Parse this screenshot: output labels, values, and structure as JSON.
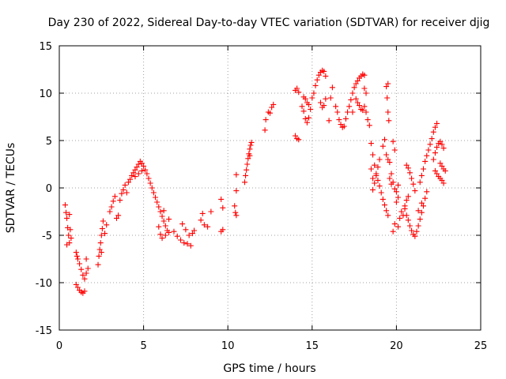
{
  "chart_data": {
    "type": "scatter",
    "title": "Day 230 of 2022, Sidereal Day-to-day VTEC variation (SDTVAR) for receiver djig",
    "xlabel": "GPS time / hours",
    "ylabel": "SDTVAR / TECUs",
    "xlim": [
      0,
      25
    ],
    "ylim": [
      -15,
      15
    ],
    "xticks": [
      0,
      5,
      10,
      15,
      20,
      25
    ],
    "yticks": [
      -15,
      -10,
      -5,
      0,
      5,
      10,
      15
    ],
    "xtick_labels": [
      "0",
      "5",
      "10",
      "15",
      "20",
      "25"
    ],
    "ytick_labels": [
      "-15",
      "-10",
      "-5",
      "0",
      "5",
      "10",
      "15"
    ],
    "grid": true,
    "marker": "+",
    "color": "#ff0000",
    "series": [
      {
        "name": "SDTVAR",
        "points": [
          [
            0.35,
            -1.8
          ],
          [
            0.4,
            -2.6
          ],
          [
            0.45,
            -3.2
          ],
          [
            0.5,
            -4.2
          ],
          [
            0.55,
            -5.0
          ],
          [
            0.6,
            -5.8
          ],
          [
            0.45,
            -6.0
          ],
          [
            0.6,
            -2.8
          ],
          [
            0.65,
            -4.4
          ],
          [
            0.7,
            -5.3
          ],
          [
            1.0,
            -10.2
          ],
          [
            1.1,
            -10.5
          ],
          [
            1.2,
            -10.8
          ],
          [
            1.3,
            -11.0
          ],
          [
            1.4,
            -11.1
          ],
          [
            1.5,
            -10.9
          ],
          [
            1.1,
            -7.5
          ],
          [
            1.2,
            -8.0
          ],
          [
            1.3,
            -8.6
          ],
          [
            1.4,
            -9.2
          ],
          [
            1.5,
            -9.6
          ],
          [
            1.6,
            -9.0
          ],
          [
            1.0,
            -6.8
          ],
          [
            1.05,
            -7.2
          ],
          [
            1.6,
            -7.5
          ],
          [
            1.7,
            -8.5
          ],
          [
            2.3,
            -8.1
          ],
          [
            2.35,
            -7.2
          ],
          [
            2.4,
            -6.5
          ],
          [
            2.45,
            -5.8
          ],
          [
            2.5,
            -5.0
          ],
          [
            2.55,
            -4.3
          ],
          [
            2.6,
            -3.5
          ],
          [
            2.7,
            -4.8
          ],
          [
            2.8,
            -3.9
          ],
          [
            2.5,
            -6.8
          ],
          [
            3.0,
            -2.5
          ],
          [
            3.1,
            -2.0
          ],
          [
            3.2,
            -1.4
          ],
          [
            3.3,
            -0.9
          ],
          [
            3.4,
            -3.2
          ],
          [
            3.5,
            -2.9
          ],
          [
            3.6,
            -1.3
          ],
          [
            3.7,
            -0.6
          ],
          [
            3.8,
            -0.2
          ],
          [
            3.9,
            0.3
          ],
          [
            4.0,
            -0.5
          ],
          [
            4.1,
            0.6
          ],
          [
            4.2,
            0.9
          ],
          [
            4.3,
            1.3
          ],
          [
            4.4,
            1.6
          ],
          [
            4.5,
            1.9
          ],
          [
            4.6,
            2.2
          ],
          [
            4.7,
            2.5
          ],
          [
            4.8,
            2.8
          ],
          [
            4.9,
            2.6
          ],
          [
            5.0,
            2.3
          ],
          [
            4.5,
            1.2
          ],
          [
            4.7,
            1.5
          ],
          [
            4.9,
            1.8
          ],
          [
            5.1,
            1.9
          ],
          [
            5.2,
            1.5
          ],
          [
            5.3,
            1.0
          ],
          [
            5.4,
            0.5
          ],
          [
            5.5,
            0.0
          ],
          [
            5.6,
            -0.5
          ],
          [
            5.7,
            -1.0
          ],
          [
            5.8,
            -1.5
          ],
          [
            5.9,
            -2.0
          ],
          [
            6.0,
            -2.5
          ],
          [
            6.1,
            -3.0
          ],
          [
            6.2,
            -3.5
          ],
          [
            6.3,
            -4.0
          ],
          [
            6.4,
            -4.5
          ],
          [
            6.2,
            -2.4
          ],
          [
            6.5,
            -3.3
          ],
          [
            5.9,
            -4.1
          ],
          [
            6.0,
            -4.9
          ],
          [
            6.1,
            -5.3
          ],
          [
            6.3,
            -5.0
          ],
          [
            6.5,
            -4.7
          ],
          [
            6.8,
            -4.6
          ],
          [
            7.0,
            -5.1
          ],
          [
            7.2,
            -5.5
          ],
          [
            7.4,
            -5.8
          ],
          [
            7.6,
            -5.9
          ],
          [
            7.8,
            -6.1
          ],
          [
            7.3,
            -3.8
          ],
          [
            7.5,
            -4.4
          ],
          [
            7.7,
            -5.0
          ],
          [
            7.9,
            -4.8
          ],
          [
            8.0,
            -4.5
          ],
          [
            8.4,
            -3.4
          ],
          [
            8.5,
            -2.7
          ],
          [
            8.6,
            -3.9
          ],
          [
            8.8,
            -4.1
          ],
          [
            9.0,
            -2.5
          ],
          [
            9.6,
            -4.6
          ],
          [
            9.7,
            -4.4
          ],
          [
            9.6,
            -1.2
          ],
          [
            9.7,
            -2.1
          ],
          [
            10.4,
            -1.9
          ],
          [
            10.45,
            -2.6
          ],
          [
            10.5,
            -2.9
          ],
          [
            10.5,
            -0.3
          ],
          [
            10.5,
            1.4
          ],
          [
            11.0,
            0.6
          ],
          [
            11.05,
            1.3
          ],
          [
            11.1,
            1.9
          ],
          [
            11.15,
            2.5
          ],
          [
            11.2,
            3.1
          ],
          [
            11.25,
            3.6
          ],
          [
            11.3,
            4.1
          ],
          [
            11.35,
            4.5
          ],
          [
            11.4,
            4.8
          ],
          [
            11.3,
            3.4
          ],
          [
            12.2,
            6.1
          ],
          [
            12.25,
            7.2
          ],
          [
            12.5,
            7.9
          ],
          [
            12.6,
            8.5
          ],
          [
            12.7,
            8.8
          ],
          [
            12.4,
            8.0
          ],
          [
            14.0,
            5.5
          ],
          [
            14.1,
            5.2
          ],
          [
            14.2,
            5.1
          ],
          [
            14.0,
            10.3
          ],
          [
            14.1,
            10.5
          ],
          [
            14.2,
            10.1
          ],
          [
            14.4,
            8.6
          ],
          [
            14.5,
            8.1
          ],
          [
            14.6,
            7.3
          ],
          [
            14.7,
            6.9
          ],
          [
            14.8,
            7.4
          ],
          [
            14.9,
            8.3
          ],
          [
            14.5,
            9.6
          ],
          [
            14.6,
            9.4
          ],
          [
            14.7,
            9.0
          ],
          [
            14.8,
            8.8
          ],
          [
            15.0,
            9.5
          ],
          [
            15.1,
            10.0
          ],
          [
            15.2,
            10.8
          ],
          [
            15.3,
            11.4
          ],
          [
            15.4,
            11.9
          ],
          [
            15.5,
            12.2
          ],
          [
            15.6,
            12.4
          ],
          [
            15.7,
            12.3
          ],
          [
            15.8,
            11.8
          ],
          [
            15.5,
            9.0
          ],
          [
            15.6,
            8.5
          ],
          [
            15.7,
            8.7
          ],
          [
            15.8,
            9.4
          ],
          [
            16.0,
            7.1
          ],
          [
            16.2,
            10.6
          ],
          [
            16.1,
            9.5
          ],
          [
            16.4,
            8.6
          ],
          [
            16.5,
            8.0
          ],
          [
            16.6,
            7.2
          ],
          [
            16.7,
            6.7
          ],
          [
            16.8,
            6.4
          ],
          [
            16.9,
            6.5
          ],
          [
            17.0,
            7.3
          ],
          [
            17.1,
            8.0
          ],
          [
            17.2,
            8.6
          ],
          [
            17.3,
            9.3
          ],
          [
            17.4,
            10.0
          ],
          [
            17.5,
            10.6
          ],
          [
            17.6,
            11.0
          ],
          [
            17.7,
            11.3
          ],
          [
            17.8,
            11.6
          ],
          [
            17.9,
            11.8
          ],
          [
            18.0,
            12.0
          ],
          [
            18.1,
            11.9
          ],
          [
            17.6,
            9.4
          ],
          [
            17.7,
            9.0
          ],
          [
            17.8,
            8.7
          ],
          [
            17.9,
            8.3
          ],
          [
            18.0,
            8.2
          ],
          [
            18.1,
            8.6
          ],
          [
            18.2,
            8.0
          ],
          [
            18.3,
            7.2
          ],
          [
            18.4,
            6.6
          ],
          [
            17.4,
            8.0
          ],
          [
            18.1,
            10.5
          ],
          [
            18.2,
            10.0
          ],
          [
            18.5,
            4.7
          ],
          [
            18.6,
            3.5
          ],
          [
            18.7,
            2.4
          ],
          [
            18.8,
            1.5
          ],
          [
            18.9,
            0.8
          ],
          [
            19.0,
            0.2
          ],
          [
            19.1,
            -0.5
          ],
          [
            19.2,
            -1.2
          ],
          [
            18.6,
            -0.2
          ],
          [
            18.7,
            0.5
          ],
          [
            18.8,
            1.3
          ],
          [
            18.9,
            2.2
          ],
          [
            19.0,
            3.0
          ],
          [
            18.5,
            2.0
          ],
          [
            18.6,
            1.0
          ],
          [
            19.3,
            -1.8
          ],
          [
            19.4,
            -2.4
          ],
          [
            19.5,
            -2.9
          ],
          [
            19.3,
            5.1
          ],
          [
            19.4,
            3.5
          ],
          [
            19.5,
            3.0
          ],
          [
            19.2,
            4.4
          ],
          [
            19.6,
            2.7
          ],
          [
            19.7,
            1.5
          ],
          [
            19.8,
            0.6
          ],
          [
            19.9,
            -0.1
          ],
          [
            20.0,
            -0.4
          ],
          [
            20.1,
            0.3
          ],
          [
            19.4,
            10.7
          ],
          [
            19.45,
            9.5
          ],
          [
            19.5,
            8.0
          ],
          [
            19.55,
            7.1
          ],
          [
            19.5,
            11.0
          ],
          [
            19.6,
            1.0
          ],
          [
            19.7,
            0.4
          ],
          [
            19.8,
            4.9
          ],
          [
            19.9,
            4.0
          ],
          [
            19.8,
            -4.6
          ],
          [
            19.9,
            -3.8
          ],
          [
            20.1,
            -4.1
          ],
          [
            20.2,
            -3.2
          ],
          [
            20.3,
            -2.5
          ],
          [
            20.4,
            -2.9
          ],
          [
            20.5,
            -1.9
          ],
          [
            20.0,
            -1.5
          ],
          [
            20.1,
            -1.0
          ],
          [
            20.6,
            -1.3
          ],
          [
            20.7,
            -0.9
          ],
          [
            20.5,
            -2.2
          ],
          [
            20.6,
            -2.9
          ],
          [
            20.7,
            -3.4
          ],
          [
            20.8,
            -4.0
          ],
          [
            20.9,
            -4.5
          ],
          [
            21.0,
            -4.9
          ],
          [
            21.1,
            -5.1
          ],
          [
            21.2,
            -4.6
          ],
          [
            21.3,
            -4.0
          ],
          [
            21.4,
            -3.3
          ],
          [
            21.5,
            -2.6
          ],
          [
            21.6,
            -1.9
          ],
          [
            21.7,
            -1.1
          ],
          [
            21.8,
            -0.4
          ],
          [
            20.6,
            2.4
          ],
          [
            20.7,
            2.1
          ],
          [
            20.8,
            1.6
          ],
          [
            20.9,
            1.0
          ],
          [
            21.0,
            0.4
          ],
          [
            21.1,
            -0.3
          ],
          [
            21.4,
            0.6
          ],
          [
            21.5,
            1.3
          ],
          [
            21.6,
            2.0
          ],
          [
            21.7,
            2.8
          ],
          [
            21.8,
            3.4
          ],
          [
            21.9,
            4.0
          ],
          [
            22.0,
            4.6
          ],
          [
            22.1,
            5.2
          ],
          [
            22.2,
            5.9
          ],
          [
            22.3,
            6.4
          ],
          [
            22.4,
            6.8
          ],
          [
            22.2,
            3.0
          ],
          [
            22.3,
            3.7
          ],
          [
            22.4,
            4.3
          ],
          [
            22.5,
            4.7
          ],
          [
            22.6,
            4.9
          ],
          [
            22.7,
            4.6
          ],
          [
            22.8,
            4.2
          ],
          [
            22.3,
            1.8
          ],
          [
            22.4,
            1.5
          ],
          [
            22.5,
            1.2
          ],
          [
            22.6,
            1.0
          ],
          [
            22.7,
            0.8
          ],
          [
            22.8,
            0.5
          ],
          [
            22.6,
            2.6
          ],
          [
            22.7,
            2.3
          ],
          [
            22.8,
            2.0
          ],
          [
            22.9,
            1.8
          ],
          [
            21.5,
            -1.6
          ],
          [
            21.3,
            -2.4
          ]
        ]
      }
    ]
  }
}
